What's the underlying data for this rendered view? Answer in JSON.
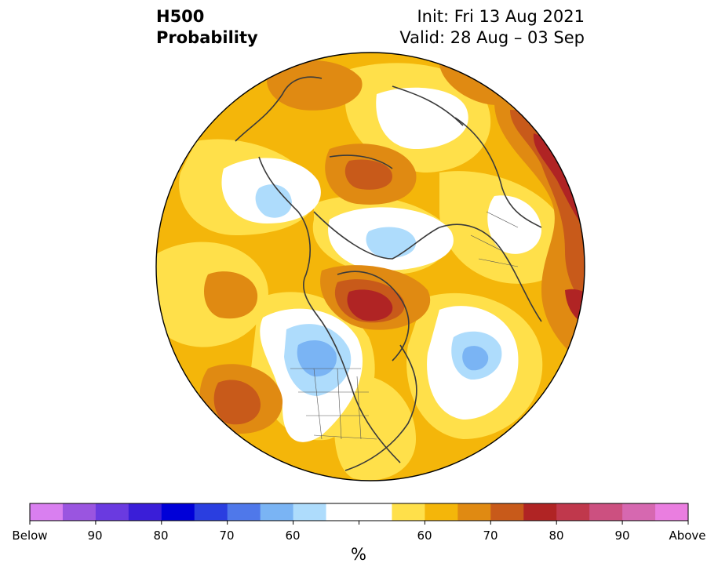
{
  "header": {
    "variable": "H500",
    "product": "Probability",
    "init": "Init: Fri 13 Aug 2021",
    "valid": "Valid: 28 Aug – 03 Sep"
  },
  "colorbar": {
    "unit": "%",
    "colors": [
      "#d97ff0",
      "#9a55e0",
      "#6a3ae0",
      "#3a1ed8",
      "#0000d8",
      "#2a3ee0",
      "#4f78ea",
      "#7ab4f4",
      "#aedcfc",
      "#ffffff",
      "#ffffff",
      "#ffe04a",
      "#f4b60a",
      "#e08a12",
      "#c85a1a",
      "#b02424",
      "#c0384c",
      "#cc5080",
      "#d668b0",
      "#ea7ee0"
    ],
    "labels": [
      "Below",
      "90",
      "80",
      "70",
      "60",
      "60",
      "70",
      "80",
      "90",
      "Above"
    ]
  },
  "palette": {
    "background": "#f4b60a",
    "map_outline": "#000000",
    "coast": "#3a3a3a"
  }
}
